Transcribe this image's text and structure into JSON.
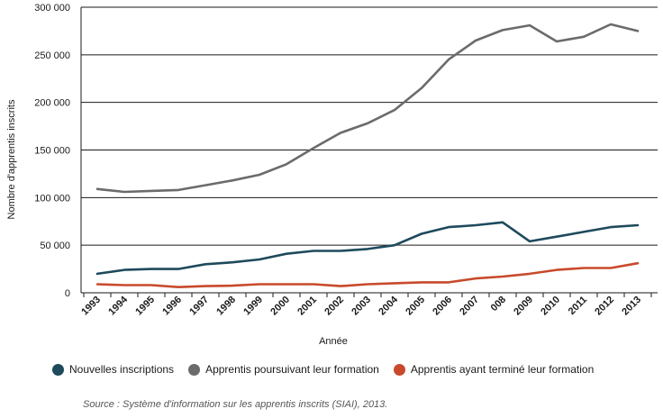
{
  "chart_data": {
    "type": "line",
    "title": "",
    "xlabel": "Année",
    "ylabel": "Nombre d'apprentis inscrits",
    "ylim": [
      0,
      300000
    ],
    "y_ticks": [
      0,
      50000,
      100000,
      150000,
      200000,
      250000,
      300000
    ],
    "y_tick_labels": [
      "0",
      "50 000",
      "100 000",
      "150 000",
      "200 000",
      "250 000",
      "300 000"
    ],
    "categories": [
      "1993",
      "1994",
      "1995",
      "1996",
      "1997",
      "1998",
      "1999",
      "2000",
      "2001",
      "2002",
      "2003",
      "2004",
      "2005",
      "2006",
      "2007",
      "008",
      "2009",
      "2010",
      "2011",
      "2012",
      "2013"
    ],
    "grid": "horizontal",
    "legend_position": "bottom",
    "series": [
      {
        "name": "Nouvelles inscriptions",
        "color": "#1e4a5c",
        "values": [
          20000,
          24000,
          25000,
          25000,
          30000,
          32000,
          35000,
          41000,
          44000,
          44000,
          46000,
          50000,
          62000,
          69000,
          71000,
          74000,
          54000,
          59000,
          64000,
          69000,
          71000
        ]
      },
      {
        "name": "Apprentis poursuivant leur formation",
        "color": "#6b6b6b",
        "values": [
          109000,
          106000,
          107000,
          108000,
          113000,
          118000,
          124000,
          135000,
          152000,
          168000,
          178000,
          192000,
          215000,
          245000,
          265000,
          276000,
          281000,
          264000,
          269000,
          282000,
          275000
        ]
      },
      {
        "name": "Apprentis ayant terminé leur formation",
        "color": "#c84a2c",
        "values": [
          9000,
          8000,
          8000,
          6000,
          7000,
          7500,
          9000,
          9000,
          9000,
          7000,
          9000,
          10000,
          11000,
          11000,
          15000,
          17000,
          20000,
          24000,
          26000,
          26000,
          31000
        ]
      }
    ]
  },
  "source": "Source : Système d'information sur les apprentis inscrits (SIAI), 2013."
}
